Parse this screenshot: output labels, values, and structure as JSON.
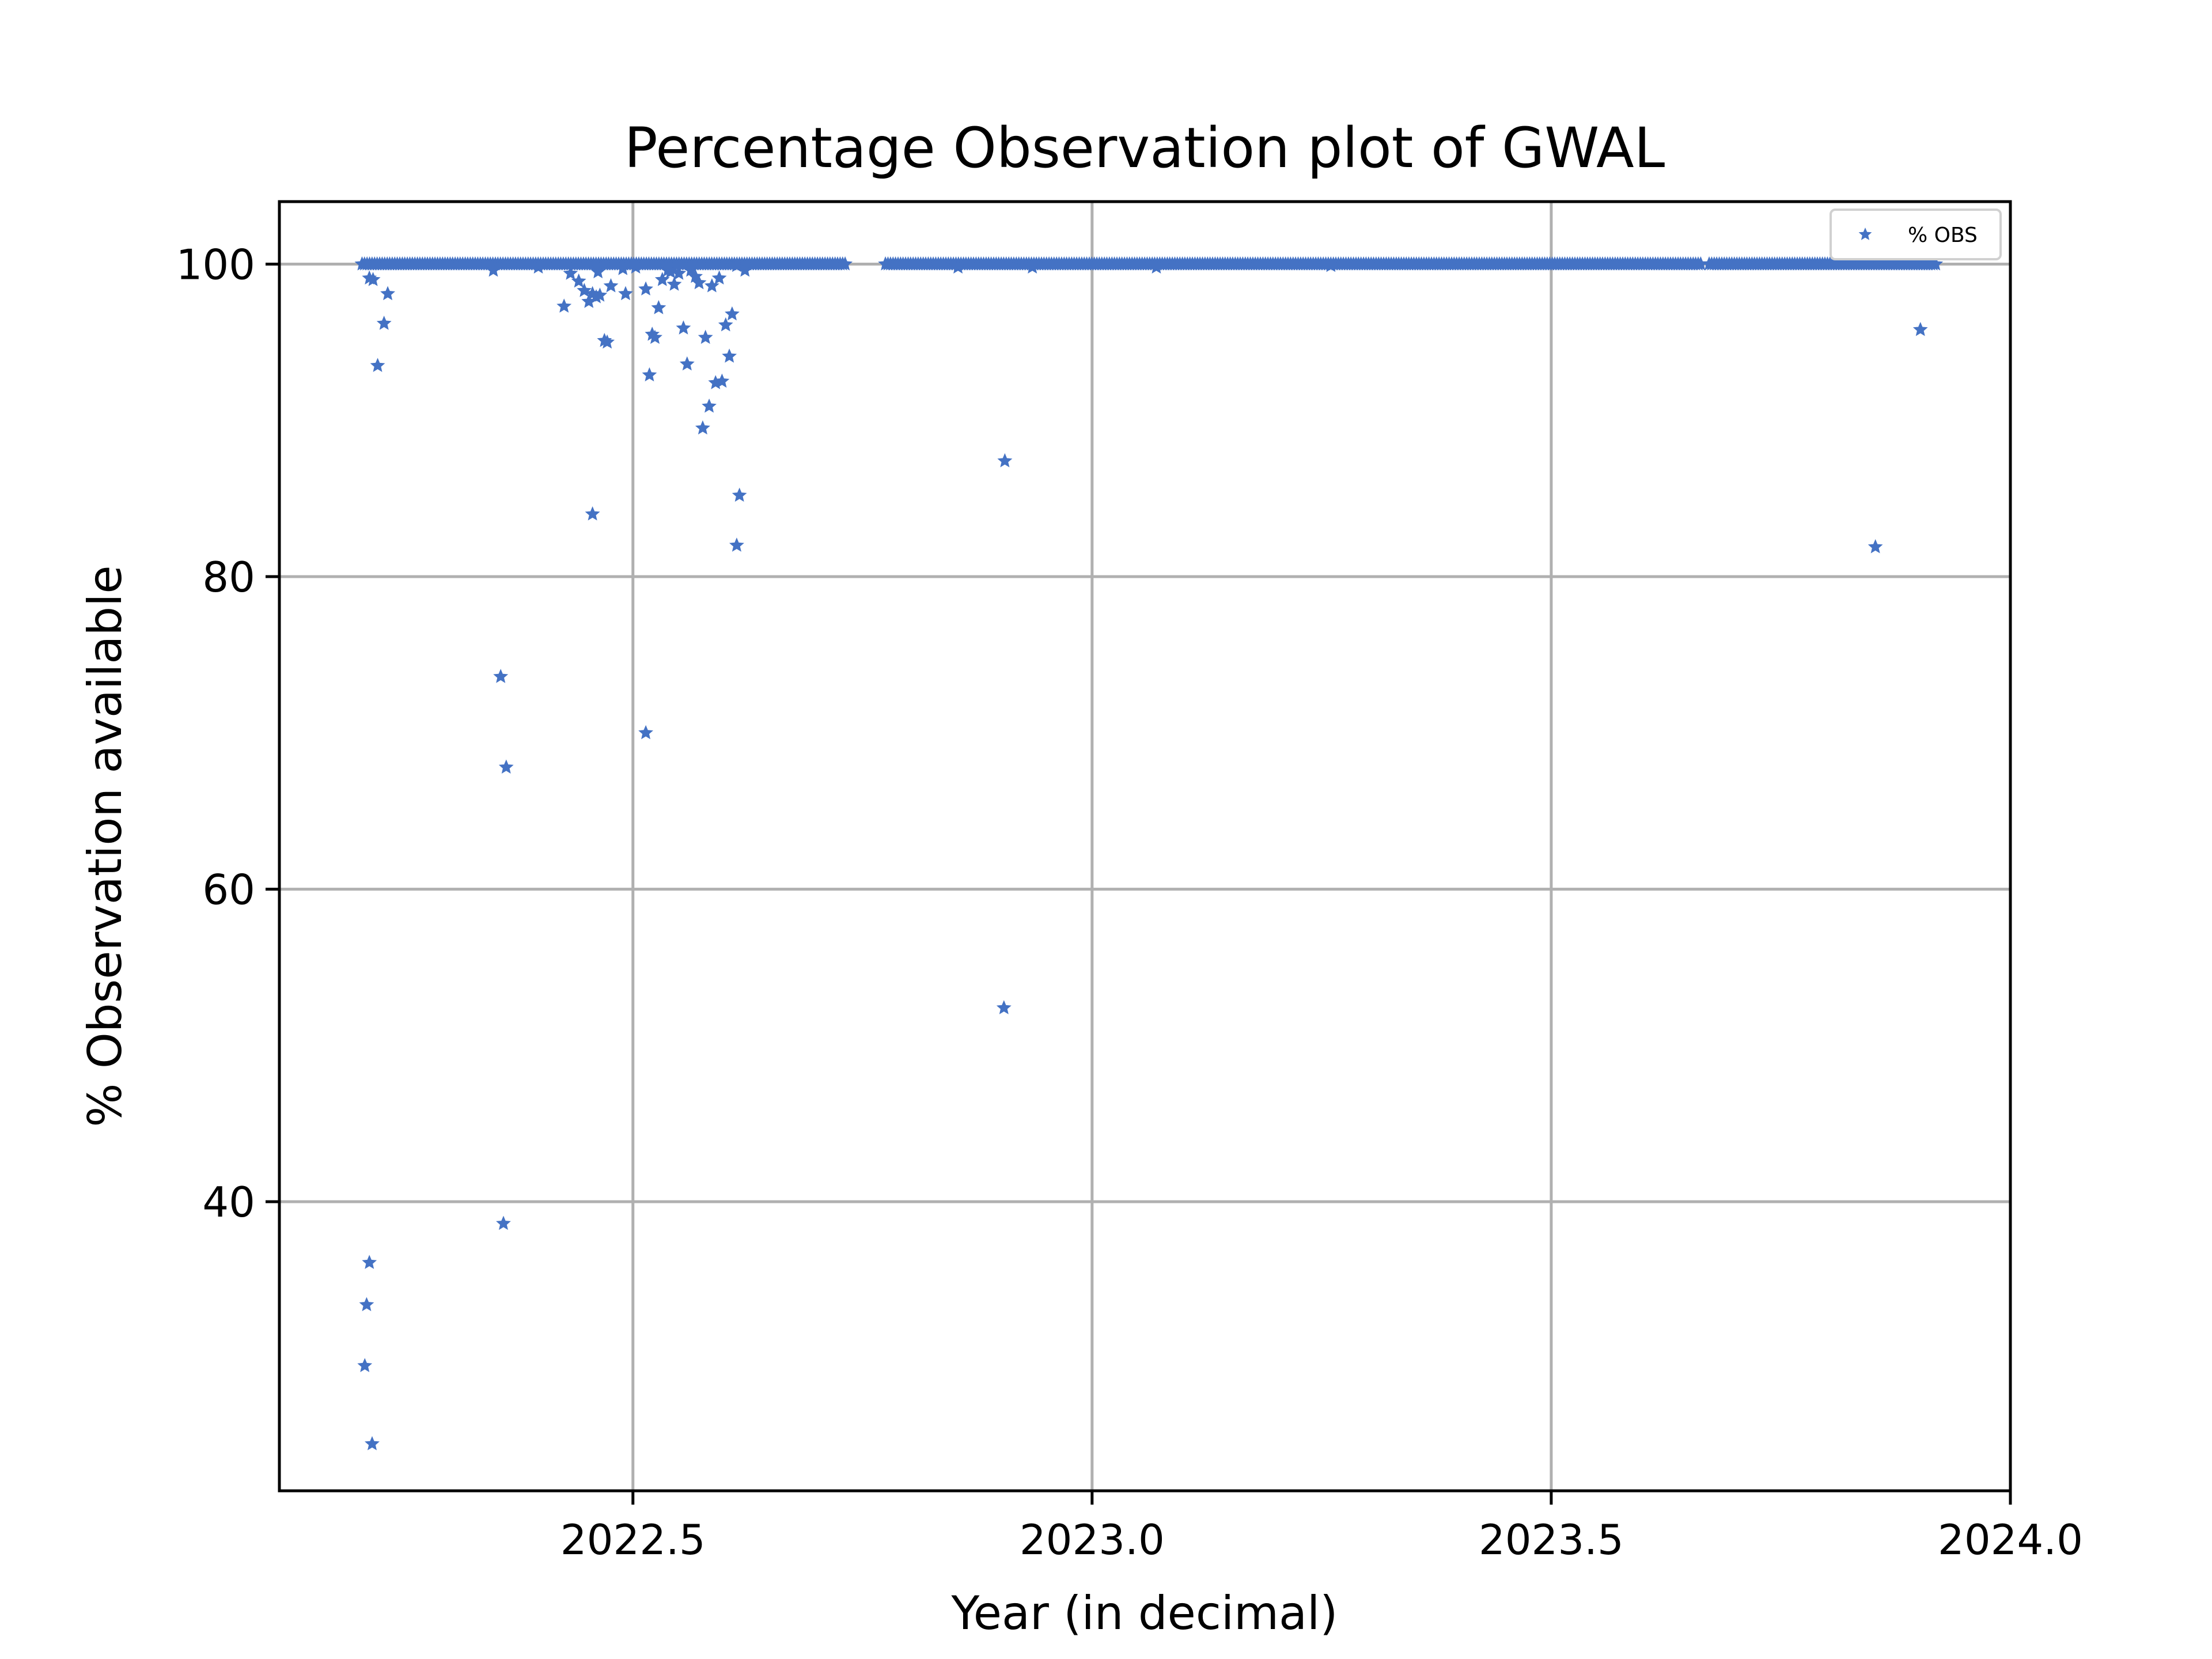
{
  "chart_data": {
    "type": "scatter",
    "title": "Percentage Observation plot of GWAL",
    "xlabel": "Year (in decimal)",
    "ylabel": "% Observation available",
    "xlim": [
      2022.115,
      2024.0
    ],
    "ylim": [
      21.5,
      104
    ],
    "xticks": [
      2022.5,
      2023.0,
      2023.5,
      2024.0
    ],
    "xtick_labels": [
      "2022.5",
      "2023.0",
      "2023.5",
      "2024.0"
    ],
    "yticks": [
      40,
      60,
      80,
      100
    ],
    "ytick_labels": [
      "40",
      "60",
      "80",
      "100"
    ],
    "grid": true,
    "legend": {
      "position": "top-right",
      "entries": [
        "% OBS"
      ]
    },
    "marker": "star",
    "color": "#4472c4",
    "series": [
      {
        "name": "% OBS",
        "baseline_runs": [
          {
            "x_start": 2022.205,
            "x_end": 2022.733,
            "step": 0.00274,
            "y": 100
          },
          {
            "x_start": 2022.775,
            "x_end": 2023.663,
            "step": 0.00274,
            "y": 100
          },
          {
            "x_start": 2023.672,
            "x_end": 2023.92,
            "step": 0.00274,
            "y": 100
          }
        ],
        "points": [
          {
            "x": 2022.213,
            "y": 99.1
          },
          {
            "x": 2022.217,
            "y": 99.0
          },
          {
            "x": 2022.222,
            "y": 93.5
          },
          {
            "x": 2022.229,
            "y": 96.2
          },
          {
            "x": 2022.233,
            "y": 98.1
          },
          {
            "x": 2022.208,
            "y": 29.5
          },
          {
            "x": 2022.21,
            "y": 33.4
          },
          {
            "x": 2022.213,
            "y": 36.1
          },
          {
            "x": 2022.216,
            "y": 24.5
          },
          {
            "x": 2022.356,
            "y": 73.6
          },
          {
            "x": 2022.359,
            "y": 38.6
          },
          {
            "x": 2022.362,
            "y": 67.8
          },
          {
            "x": 2022.348,
            "y": 99.6
          },
          {
            "x": 2022.397,
            "y": 99.8
          },
          {
            "x": 2022.425,
            "y": 97.3
          },
          {
            "x": 2022.432,
            "y": 99.4
          },
          {
            "x": 2022.441,
            "y": 98.9
          },
          {
            "x": 2022.447,
            "y": 98.3
          },
          {
            "x": 2022.452,
            "y": 97.6
          },
          {
            "x": 2022.456,
            "y": 98.1
          },
          {
            "x": 2022.46,
            "y": 97.9
          },
          {
            "x": 2022.464,
            "y": 98.0
          },
          {
            "x": 2022.469,
            "y": 95.1
          },
          {
            "x": 2022.472,
            "y": 95.0
          },
          {
            "x": 2022.476,
            "y": 98.6
          },
          {
            "x": 2022.489,
            "y": 99.7
          },
          {
            "x": 2022.456,
            "y": 84.0
          },
          {
            "x": 2022.462,
            "y": 99.5
          },
          {
            "x": 2022.492,
            "y": 98.1
          },
          {
            "x": 2022.503,
            "y": 99.8
          },
          {
            "x": 2022.514,
            "y": 98.4
          },
          {
            "x": 2022.518,
            "y": 92.9
          },
          {
            "x": 2022.521,
            "y": 95.5
          },
          {
            "x": 2022.524,
            "y": 95.3
          },
          {
            "x": 2022.528,
            "y": 97.2
          },
          {
            "x": 2022.532,
            "y": 99.0
          },
          {
            "x": 2022.514,
            "y": 70.0
          },
          {
            "x": 2022.538,
            "y": 99.6
          },
          {
            "x": 2022.541,
            "y": 99.5
          },
          {
            "x": 2022.545,
            "y": 98.7
          },
          {
            "x": 2022.55,
            "y": 99.4
          },
          {
            "x": 2022.555,
            "y": 95.9
          },
          {
            "x": 2022.559,
            "y": 93.6
          },
          {
            "x": 2022.563,
            "y": 99.6
          },
          {
            "x": 2022.568,
            "y": 99.2
          },
          {
            "x": 2022.572,
            "y": 98.8
          },
          {
            "x": 2022.576,
            "y": 89.5
          },
          {
            "x": 2022.579,
            "y": 95.3
          },
          {
            "x": 2022.583,
            "y": 90.9
          },
          {
            "x": 2022.586,
            "y": 98.6
          },
          {
            "x": 2022.59,
            "y": 92.4
          },
          {
            "x": 2022.594,
            "y": 99.1
          },
          {
            "x": 2022.597,
            "y": 92.5
          },
          {
            "x": 2022.601,
            "y": 96.1
          },
          {
            "x": 2022.605,
            "y": 94.1
          },
          {
            "x": 2022.608,
            "y": 96.8
          },
          {
            "x": 2022.613,
            "y": 99.9
          },
          {
            "x": 2022.616,
            "y": 85.2
          },
          {
            "x": 2022.613,
            "y": 82.0
          },
          {
            "x": 2022.622,
            "y": 99.6
          },
          {
            "x": 2022.854,
            "y": 99.8
          },
          {
            "x": 2022.905,
            "y": 87.4
          },
          {
            "x": 2022.904,
            "y": 52.4
          },
          {
            "x": 2022.935,
            "y": 99.8
          },
          {
            "x": 2023.07,
            "y": 99.8
          },
          {
            "x": 2023.26,
            "y": 99.9
          },
          {
            "x": 2023.853,
            "y": 81.9
          },
          {
            "x": 2023.902,
            "y": 95.8
          }
        ]
      }
    ]
  }
}
